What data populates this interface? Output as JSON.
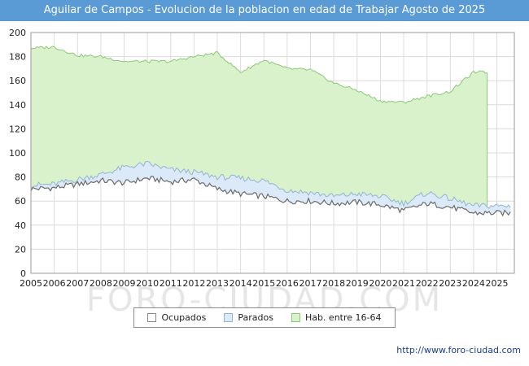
{
  "title": "Aguilar de Campos - Evolucion de la poblacion en edad de Trabajar Agosto de 2025",
  "watermark": "FORO-CIUDAD.COM",
  "footer_url": "http://www.foro-ciudad.com",
  "colors": {
    "title_bar": "#5b9bd5",
    "grid": "#dcdcdc",
    "axis": "#9a9a9a",
    "tick_text": "#222222",
    "ocupados_line": "#6b6b6b",
    "ocupados_fill": "#ffffff",
    "parados_line": "#92b4d4",
    "parados_fill": "#dbe9f8",
    "hab_line": "#8cc878",
    "hab_fill": "#d9f2cb",
    "footer_text": "#1a3f8f",
    "watermark": "#d3d3d3"
  },
  "legend": [
    {
      "label": "Ocupados",
      "fill": "#ffffff",
      "stroke": "#8a8a8a"
    },
    {
      "label": "Parados",
      "fill": "#dbe9f8",
      "stroke": "#92b4d4"
    },
    {
      "label": "Hab. entre 16-64",
      "fill": "#d9f2cb",
      "stroke": "#8cc878"
    }
  ],
  "chart_data": {
    "type": "area",
    "title": "Aguilar de Campos - Evolucion de la poblacion en edad de Trabajar Agosto de 2025",
    "xlabel": "",
    "ylabel": "",
    "ylim": [
      0,
      200
    ],
    "ytick_step": 20,
    "grid": true,
    "legend_position": "bottom",
    "x_years": [
      2005,
      2006,
      2007,
      2008,
      2009,
      2010,
      2011,
      2012,
      2013,
      2014,
      2015,
      2016,
      2017,
      2018,
      2019,
      2020,
      2021,
      2022,
      2023,
      2024,
      2025
    ],
    "x_end": 2025.6,
    "hab_series_end": 2024.6,
    "series": [
      {
        "name": "Ocupados",
        "style": "line",
        "values": [
          70,
          71,
          74,
          77,
          75,
          79,
          76,
          78,
          70,
          66,
          64,
          60,
          60,
          58,
          59,
          57,
          52,
          58,
          55,
          50,
          50
        ]
      },
      {
        "name": "Parados",
        "style": "band-top-stacked-on-ocupados",
        "values": [
          73,
          74,
          78,
          82,
          88,
          91,
          86,
          84,
          80,
          79,
          77,
          69,
          67,
          64,
          66,
          64,
          58,
          67,
          62,
          56,
          56
        ]
      },
      {
        "name": "Hab. entre 16-64",
        "style": "area-top",
        "values": [
          187,
          188,
          181,
          180,
          176,
          176,
          176,
          180,
          183,
          167,
          177,
          170,
          169,
          158,
          152,
          143,
          142,
          147,
          151,
          167,
          null
        ]
      }
    ]
  }
}
